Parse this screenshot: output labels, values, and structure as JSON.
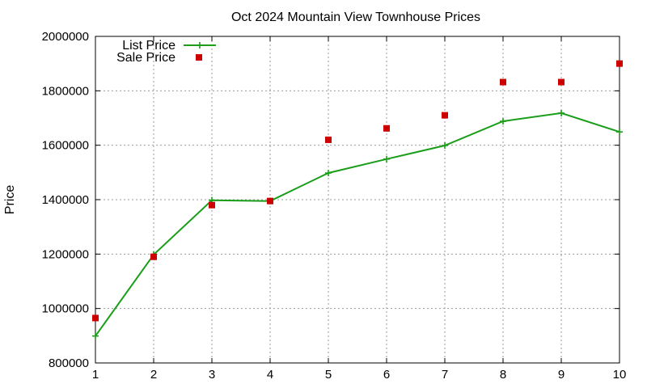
{
  "chart_data": {
    "type": "line",
    "title": "Oct 2024 Mountain View Townhouse Prices",
    "xlabel": "",
    "ylabel": "Price",
    "xlim": [
      1,
      10
    ],
    "ylim": [
      800000,
      2000000
    ],
    "x_ticks": [
      1,
      2,
      3,
      4,
      5,
      6,
      7,
      8,
      9,
      10
    ],
    "y_ticks": [
      800000,
      1000000,
      1200000,
      1400000,
      1600000,
      1800000,
      2000000
    ],
    "grid": true,
    "legend_position": "top-left",
    "series": [
      {
        "name": "List Price",
        "style": "line-with-plus-markers",
        "color": "#1a9e1a",
        "x": [
          1,
          2,
          3,
          4,
          5,
          6,
          7,
          8,
          9,
          10
        ],
        "values": [
          899000,
          1198000,
          1398000,
          1395000,
          1498000,
          1549000,
          1599000,
          1688000,
          1718000,
          1649000
        ]
      },
      {
        "name": "Sale Price",
        "style": "square-markers",
        "color": "#cc0000",
        "x": [
          1,
          2,
          3,
          4,
          5,
          6,
          7,
          8,
          9,
          10
        ],
        "values": [
          965000,
          1190000,
          1380000,
          1395000,
          1620000,
          1662000,
          1710000,
          1832000,
          1832000,
          1900000
        ]
      }
    ]
  }
}
